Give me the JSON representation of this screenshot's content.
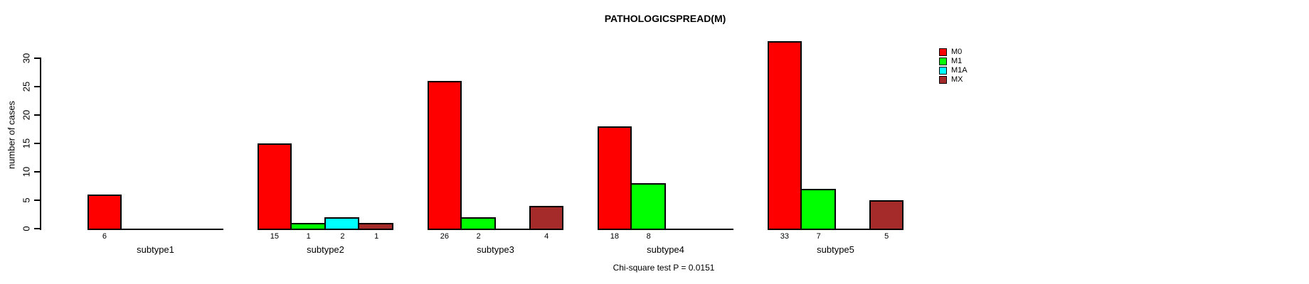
{
  "figure": {
    "background": "#FFFFFF",
    "axis_color": "#000000"
  },
  "chart_data": {
    "type": "bar",
    "title": "PATHOLOGICSPREAD(M)",
    "ylabel": "number of cases",
    "xlabel": "",
    "note": "Chi-square test P = 0.0151",
    "ylim": [
      0,
      30
    ],
    "yticks": [
      0,
      5,
      10,
      15,
      20,
      25,
      30
    ],
    "grid": false,
    "legend_position": "top-right",
    "series": [
      {
        "name": "M0",
        "color": "#FF0000"
      },
      {
        "name": "M1",
        "color": "#00FF00"
      },
      {
        "name": "M1A",
        "color": "#00FFFF"
      },
      {
        "name": "MX",
        "color": "#A52A2A"
      }
    ],
    "categories": [
      "subtype1",
      "subtype2",
      "subtype3",
      "subtype4",
      "subtype5"
    ],
    "groups": [
      {
        "label": "subtype1",
        "values": [
          6,
          null,
          null,
          null
        ]
      },
      {
        "label": "subtype2",
        "values": [
          15,
          1,
          2,
          1
        ]
      },
      {
        "label": "subtype3",
        "values": [
          26,
          2,
          null,
          4
        ]
      },
      {
        "label": "subtype4",
        "values": [
          18,
          8,
          null,
          null
        ]
      },
      {
        "label": "subtype5",
        "values": [
          33,
          7,
          null,
          5
        ]
      }
    ]
  }
}
